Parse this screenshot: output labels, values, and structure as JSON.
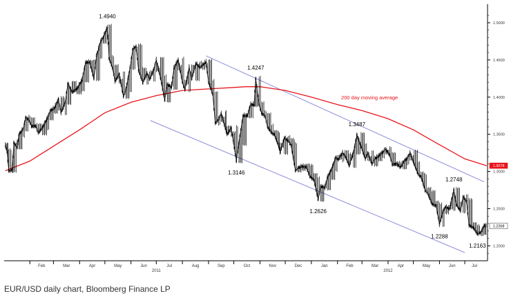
{
  "caption": "EUR/USD daily chart, Bloomberg Finance LP",
  "colors": {
    "price": "#000000",
    "moving_average": "#e8141b",
    "channel": "#8c8cd9",
    "ma_label": "#e8141b",
    "axis": "#000000",
    "last_ma_badge": "#e8141b",
    "last_price_badge_border": "#555555"
  },
  "chart_data": {
    "type": "line",
    "title": "",
    "xlabel": "",
    "ylabel": "",
    "ylim": [
      1.18,
      1.525
    ],
    "y_scale": "linear",
    "grid": false,
    "legend": "none",
    "x_ticks": [
      "Feb",
      "Mar",
      "Apr",
      "May",
      "Jun",
      "Jul",
      "Aug",
      "Sep",
      "Oct",
      "Nov",
      "Dec",
      "Jan",
      "Feb",
      "Mar",
      "Apr",
      "May",
      "Jun",
      "Jul"
    ],
    "x_tick_dates": [
      "2011-02-01",
      "2011-03-01",
      "2011-04-01",
      "2011-05-01",
      "2011-06-01",
      "2011-07-01",
      "2011-08-01",
      "2011-09-01",
      "2011-10-01",
      "2011-11-01",
      "2011-12-01",
      "2012-01-01",
      "2012-02-01",
      "2012-03-01",
      "2012-04-01",
      "2012-05-01",
      "2012-06-01",
      "2012-07-01"
    ],
    "year_labels": [
      {
        "date": "2011-07-01",
        "text": "2011"
      },
      {
        "date": "2012-04-01",
        "text": "2012"
      }
    ],
    "x_range": [
      "2011-01-03",
      "2012-07-27"
    ],
    "y_ticks": [
      {
        "value": 1.5,
        "label": "1.5000"
      },
      {
        "value": 1.45,
        "label": "1.4500"
      },
      {
        "value": 1.4,
        "label": "1.4000"
      },
      {
        "value": 1.35,
        "label": "1.3500"
      },
      {
        "value": 1.3,
        "label": "1.3000"
      },
      {
        "value": 1.25,
        "label": "1.2500"
      },
      {
        "value": 1.2,
        "label": "1.2000"
      }
    ],
    "last_values": [
      {
        "series": "moving_average",
        "label": "1.3078",
        "value": 1.3078
      },
      {
        "series": "price",
        "label": "1.2268",
        "value": 1.2268
      }
    ],
    "series": [
      {
        "id": "price",
        "style": "candlestick-approx",
        "points": [
          [
            "2011-01-03",
            1.335
          ],
          [
            "2011-01-05",
            1.327
          ],
          [
            "2011-01-07",
            1.301
          ],
          [
            "2011-01-11",
            1.302
          ],
          [
            "2011-01-13",
            1.338
          ],
          [
            "2011-01-17",
            1.333
          ],
          [
            "2011-01-19",
            1.349
          ],
          [
            "2011-01-24",
            1.357
          ],
          [
            "2011-01-27",
            1.372
          ],
          [
            "2011-01-31",
            1.369
          ],
          [
            "2011-02-03",
            1.361
          ],
          [
            "2011-02-08",
            1.361
          ],
          [
            "2011-02-11",
            1.352
          ],
          [
            "2011-02-16",
            1.359
          ],
          [
            "2011-02-22",
            1.372
          ],
          [
            "2011-02-25",
            1.381
          ],
          [
            "2011-03-02",
            1.385
          ],
          [
            "2011-03-07",
            1.397
          ],
          [
            "2011-03-10",
            1.379
          ],
          [
            "2011-03-15",
            1.393
          ],
          [
            "2011-03-18",
            1.418
          ],
          [
            "2011-03-23",
            1.407
          ],
          [
            "2011-03-29",
            1.411
          ],
          [
            "2011-04-04",
            1.423
          ],
          [
            "2011-04-08",
            1.446
          ],
          [
            "2011-04-13",
            1.447
          ],
          [
            "2011-04-18",
            1.425
          ],
          [
            "2011-04-21",
            1.455
          ],
          [
            "2011-04-26",
            1.475
          ],
          [
            "2011-04-29",
            1.48
          ],
          [
            "2011-05-04",
            1.494
          ],
          [
            "2011-05-06",
            1.452
          ],
          [
            "2011-05-10",
            1.44
          ],
          [
            "2011-05-13",
            1.421
          ],
          [
            "2011-05-18",
            1.431
          ],
          [
            "2011-05-23",
            1.401
          ],
          [
            "2011-05-26",
            1.41
          ],
          [
            "2011-05-31",
            1.44
          ],
          [
            "2011-06-03",
            1.464
          ],
          [
            "2011-06-07",
            1.468
          ],
          [
            "2011-06-10",
            1.436
          ],
          [
            "2011-06-15",
            1.42
          ],
          [
            "2011-06-20",
            1.432
          ],
          [
            "2011-06-23",
            1.424
          ],
          [
            "2011-06-28",
            1.437
          ],
          [
            "2011-07-01",
            1.45
          ],
          [
            "2011-07-06",
            1.426
          ],
          [
            "2011-07-11",
            1.396
          ],
          [
            "2011-07-14",
            1.417
          ],
          [
            "2011-07-19",
            1.413
          ],
          [
            "2011-07-22",
            1.439
          ],
          [
            "2011-07-27",
            1.45
          ],
          [
            "2011-08-01",
            1.42
          ],
          [
            "2011-08-04",
            1.41
          ],
          [
            "2011-08-09",
            1.44
          ],
          [
            "2011-08-12",
            1.425
          ],
          [
            "2011-08-17",
            1.445
          ],
          [
            "2011-08-22",
            1.44
          ],
          [
            "2011-08-25",
            1.443
          ],
          [
            "2011-08-29",
            1.447
          ],
          [
            "2011-09-01",
            1.42
          ],
          [
            "2011-09-06",
            1.404
          ],
          [
            "2011-09-09",
            1.365
          ],
          [
            "2011-09-13",
            1.37
          ],
          [
            "2011-09-16",
            1.378
          ],
          [
            "2011-09-21",
            1.358
          ],
          [
            "2011-09-23",
            1.35
          ],
          [
            "2011-09-28",
            1.358
          ],
          [
            "2011-10-04",
            1.3146
          ],
          [
            "2011-10-07",
            1.338
          ],
          [
            "2011-10-12",
            1.375
          ],
          [
            "2011-10-17",
            1.375
          ],
          [
            "2011-10-21",
            1.39
          ],
          [
            "2011-10-25",
            1.39
          ],
          [
            "2011-10-27",
            1.4247
          ],
          [
            "2011-10-31",
            1.39
          ],
          [
            "2011-11-03",
            1.378
          ],
          [
            "2011-11-07",
            1.375
          ],
          [
            "2011-11-10",
            1.36
          ],
          [
            "2011-11-15",
            1.352
          ],
          [
            "2011-11-18",
            1.35
          ],
          [
            "2011-11-23",
            1.335
          ],
          [
            "2011-11-25",
            1.326
          ],
          [
            "2011-11-30",
            1.345
          ],
          [
            "2011-12-05",
            1.341
          ],
          [
            "2011-12-08",
            1.335
          ],
          [
            "2011-12-13",
            1.302
          ],
          [
            "2011-12-16",
            1.304
          ],
          [
            "2011-12-21",
            1.307
          ],
          [
            "2011-12-26",
            1.306
          ],
          [
            "2011-12-30",
            1.294
          ],
          [
            "2012-01-04",
            1.289
          ],
          [
            "2012-01-09",
            1.2626
          ],
          [
            "2012-01-12",
            1.28
          ],
          [
            "2012-01-17",
            1.278
          ],
          [
            "2012-01-20",
            1.292
          ],
          [
            "2012-01-25",
            1.303
          ],
          [
            "2012-01-30",
            1.319
          ],
          [
            "2012-02-02",
            1.316
          ],
          [
            "2012-02-07",
            1.325
          ],
          [
            "2012-02-10",
            1.321
          ],
          [
            "2012-02-15",
            1.308
          ],
          [
            "2012-02-20",
            1.326
          ],
          [
            "2012-02-24",
            1.3487
          ],
          [
            "2012-02-29",
            1.334
          ],
          [
            "2012-03-05",
            1.317
          ],
          [
            "2012-03-08",
            1.325
          ],
          [
            "2012-03-13",
            1.31
          ],
          [
            "2012-03-16",
            1.317
          ],
          [
            "2012-03-21",
            1.321
          ],
          [
            "2012-03-26",
            1.326
          ],
          [
            "2012-03-29",
            1.33
          ],
          [
            "2012-04-03",
            1.322
          ],
          [
            "2012-04-06",
            1.31
          ],
          [
            "2012-04-11",
            1.31
          ],
          [
            "2012-04-16",
            1.306
          ],
          [
            "2012-04-19",
            1.312
          ],
          [
            "2012-04-24",
            1.318
          ],
          [
            "2012-04-27",
            1.325
          ],
          [
            "2012-05-02",
            1.31
          ],
          [
            "2012-05-07",
            1.296
          ],
          [
            "2012-05-10",
            1.293
          ],
          [
            "2012-05-15",
            1.275
          ],
          [
            "2012-05-18",
            1.271
          ],
          [
            "2012-05-23",
            1.257
          ],
          [
            "2012-05-28",
            1.254
          ],
          [
            "2012-06-01",
            1.2288
          ],
          [
            "2012-06-05",
            1.246
          ],
          [
            "2012-06-08",
            1.252
          ],
          [
            "2012-06-13",
            1.25
          ],
          [
            "2012-06-18",
            1.2748
          ],
          [
            "2012-06-21",
            1.256
          ],
          [
            "2012-06-26",
            1.247
          ],
          [
            "2012-06-29",
            1.266
          ],
          [
            "2012-07-03",
            1.26
          ],
          [
            "2012-07-06",
            1.228
          ],
          [
            "2012-07-11",
            1.225
          ],
          [
            "2012-07-16",
            1.2163
          ],
          [
            "2012-07-20",
            1.218
          ],
          [
            "2012-07-24",
            1.2268
          ]
        ]
      },
      {
        "id": "moving_average",
        "name": "200 day moving average",
        "points": [
          [
            "2011-01-03",
            1.301
          ],
          [
            "2011-02-01",
            1.314
          ],
          [
            "2011-03-01",
            1.334
          ],
          [
            "2011-04-01",
            1.356
          ],
          [
            "2011-05-01",
            1.379
          ],
          [
            "2011-06-01",
            1.393
          ],
          [
            "2011-07-01",
            1.402
          ],
          [
            "2011-08-01",
            1.409
          ],
          [
            "2011-09-01",
            1.411
          ],
          [
            "2011-10-01",
            1.413
          ],
          [
            "2011-10-15",
            1.414
          ],
          [
            "2011-11-01",
            1.414
          ],
          [
            "2011-12-01",
            1.409
          ],
          [
            "2012-01-01",
            1.4
          ],
          [
            "2012-02-01",
            1.39
          ],
          [
            "2012-03-01",
            1.382
          ],
          [
            "2012-04-01",
            1.371
          ],
          [
            "2012-05-01",
            1.356
          ],
          [
            "2012-06-01",
            1.336
          ],
          [
            "2012-07-01",
            1.317
          ],
          [
            "2012-07-27",
            1.3078
          ]
        ]
      },
      {
        "id": "channel_upper",
        "style": "trend",
        "points": [
          [
            "2011-08-29",
            1.4555
          ],
          [
            "2012-07-24",
            1.286
          ]
        ]
      },
      {
        "id": "channel_lower",
        "style": "trend",
        "points": [
          [
            "2011-06-24",
            1.3685
          ],
          [
            "2012-07-01",
            1.191
          ]
        ]
      }
    ],
    "annotations": [
      {
        "text": "1.4940",
        "date": "2011-05-04",
        "value": 1.494,
        "position": "above"
      },
      {
        "text": "1.4247",
        "date": "2011-10-27",
        "value": 1.4247,
        "position": "above"
      },
      {
        "text": "1.3146",
        "date": "2011-10-04",
        "value": 1.3146,
        "position": "below"
      },
      {
        "text": "1.3487",
        "date": "2012-02-24",
        "value": 1.3487,
        "position": "above"
      },
      {
        "text": "1.2626",
        "date": "2012-01-09",
        "value": 1.2626,
        "position": "below"
      },
      {
        "text": "1.2288",
        "date": "2012-06-01",
        "value": 1.2288,
        "position": "below"
      },
      {
        "text": "1.2748",
        "date": "2012-06-18",
        "value": 1.2748,
        "position": "above"
      },
      {
        "text": "1.2163",
        "date": "2012-07-16",
        "value": 1.2163,
        "position": "below"
      },
      {
        "text": "200 day moving average",
        "date": "2012-03-10",
        "value": 1.4,
        "position": "label",
        "series": "moving_average"
      }
    ]
  }
}
